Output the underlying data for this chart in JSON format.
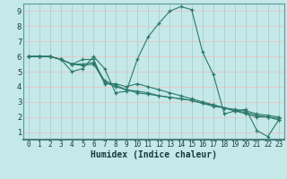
{
  "xlabel": "Humidex (Indice chaleur)",
  "xlim": [
    -0.5,
    23.5
  ],
  "ylim": [
    0.5,
    9.5
  ],
  "xticks": [
    0,
    1,
    2,
    3,
    4,
    5,
    6,
    7,
    8,
    9,
    10,
    11,
    12,
    13,
    14,
    15,
    16,
    17,
    18,
    19,
    20,
    21,
    22,
    23
  ],
  "yticks": [
    1,
    2,
    3,
    4,
    5,
    6,
    7,
    8,
    9
  ],
  "bg_color": "#c5e8e8",
  "grid_h_color": "#e8c5c5",
  "grid_v_color": "#a8d0d0",
  "line_color": "#2a7a6a",
  "series": [
    [
      6.0,
      6.0,
      6.0,
      5.8,
      5.0,
      5.2,
      6.0,
      5.2,
      3.6,
      3.7,
      5.8,
      7.3,
      8.2,
      9.0,
      9.3,
      9.1,
      6.3,
      4.8,
      2.2,
      2.4,
      2.5,
      1.1,
      0.7,
      1.8
    ],
    [
      6.0,
      6.0,
      6.0,
      5.8,
      5.5,
      5.8,
      5.8,
      4.2,
      4.2,
      4.0,
      4.2,
      4.0,
      3.8,
      3.6,
      3.4,
      3.2,
      3.0,
      2.8,
      2.6,
      2.4,
      2.2,
      2.0,
      2.0,
      1.8
    ],
    [
      6.0,
      6.0,
      6.0,
      5.8,
      5.5,
      5.5,
      5.6,
      4.4,
      4.1,
      3.8,
      3.7,
      3.6,
      3.4,
      3.3,
      3.2,
      3.1,
      2.9,
      2.8,
      2.6,
      2.5,
      2.4,
      2.2,
      2.1,
      2.0
    ],
    [
      6.0,
      6.0,
      6.0,
      5.8,
      5.5,
      5.4,
      5.5,
      4.3,
      4.0,
      3.8,
      3.6,
      3.5,
      3.4,
      3.3,
      3.2,
      3.1,
      2.9,
      2.7,
      2.6,
      2.4,
      2.3,
      2.1,
      2.0,
      1.9
    ]
  ],
  "label_fontsize": 5.5,
  "xlabel_fontsize": 7.0
}
